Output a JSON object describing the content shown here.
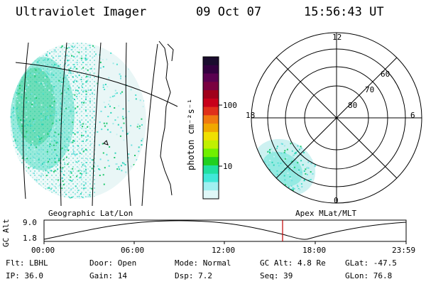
{
  "header": {
    "title": "Ultraviolet Imager",
    "date": "09 Oct 07",
    "time": "15:56:43 UT"
  },
  "geo_panel": {
    "caption": "Geographic Lat/Lon"
  },
  "colorbar": {
    "unit_label": "photon cm⁻²s⁻¹",
    "ticks": [
      "100",
      "10"
    ],
    "colors": [
      "#1a0c2e",
      "#33003f",
      "#5a0050",
      "#7a0040",
      "#a0001a",
      "#c8001a",
      "#e0301a",
      "#f07a10",
      "#f0a800",
      "#f0e000",
      "#c0f000",
      "#70f000",
      "#20d020",
      "#20e0a0",
      "#40e8d8",
      "#a0f0f0",
      "#e0f8f8"
    ]
  },
  "polar_panel": {
    "caption": "Apex MLat/MLT",
    "mlt_labels": [
      "12",
      "18",
      "6",
      "0"
    ],
    "lat_labels": [
      "60",
      "70",
      "80"
    ]
  },
  "alt_plot": {
    "ylabel": "GC Alt",
    "yticks": [
      "9.0",
      "1.8"
    ],
    "xticks": [
      "00:00",
      "06:00",
      "12:00",
      "18:00",
      "23:59"
    ],
    "marker_color": "#c00000"
  },
  "status": {
    "row1": [
      {
        "label": "Flt:",
        "value": "LBHL"
      },
      {
        "label": "Door:",
        "value": "Open"
      },
      {
        "label": "Mode:",
        "value": "Normal"
      },
      {
        "label": "GC Alt:",
        "value": "4.8 Re"
      },
      {
        "label": "GLat:",
        "value": "-47.5"
      }
    ],
    "row2": [
      {
        "label": "IP:",
        "value": "36.0"
      },
      {
        "label": "Gain:",
        "value": "14"
      },
      {
        "label": "Dsp:",
        "value": "7.2"
      },
      {
        "label": "Seq:",
        "value": "39"
      },
      {
        "label": "GLon:",
        "value": "76.8"
      }
    ]
  }
}
